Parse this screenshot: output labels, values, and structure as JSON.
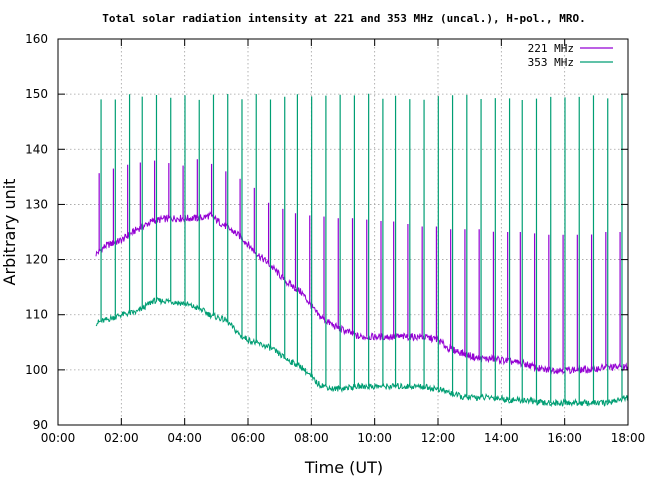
{
  "chart_data": {
    "type": "line",
    "title": "Total solar radiation intensity at 221 and 353 MHz (uncal.), H-pol., MRO.",
    "xlabel": "Time (UT)",
    "ylabel": "Arbitrary unit",
    "xlim": [
      0,
      18
    ],
    "ylim": [
      90,
      160
    ],
    "x_ticks": [
      0,
      2,
      4,
      6,
      8,
      10,
      12,
      14,
      16,
      18
    ],
    "x_tick_labels": [
      "00:00",
      "02:00",
      "04:00",
      "06:00",
      "08:00",
      "10:00",
      "12:00",
      "14:00",
      "16:00",
      "18:00"
    ],
    "y_ticks": [
      90,
      100,
      110,
      120,
      130,
      140,
      150,
      160
    ],
    "y_tick_labels": [
      "90",
      "100",
      "110",
      "120",
      "130",
      "140",
      "150",
      "160"
    ],
    "grid": true,
    "legend_position": "top-right",
    "series": [
      {
        "name": "221 MHz",
        "color": "#9400d3",
        "x": [
          1.2,
          1.5,
          2.0,
          2.5,
          3.0,
          3.5,
          4.0,
          4.5,
          4.8,
          5.3,
          5.8,
          6.2,
          6.7,
          7.2,
          7.7,
          8.2,
          8.7,
          9.5,
          10.0,
          10.5,
          11.0,
          11.5,
          12.0,
          12.3,
          12.8,
          13.3,
          13.8,
          14.3,
          14.8,
          15.3,
          15.8,
          16.3,
          16.8,
          17.3,
          18.0
        ],
        "values": [
          121,
          122.5,
          123.5,
          125.5,
          127,
          127.5,
          127.5,
          127.5,
          128,
          126,
          124,
          121.5,
          119,
          116,
          114,
          110,
          108,
          106,
          106,
          106,
          106,
          106,
          105.5,
          104,
          103,
          102,
          102,
          101.5,
          101,
          100,
          100,
          100,
          100,
          100.5,
          100.5
        ],
        "spike_peaks": [
          135.5,
          136,
          137,
          137.5,
          138,
          137.5,
          137,
          138.5,
          137.5,
          136,
          134.5,
          133,
          130,
          129,
          128,
          128,
          127.5,
          127.5,
          127,
          127,
          126.5,
          126,
          126,
          125.5,
          125.5,
          125.5,
          125,
          125,
          125,
          124.5,
          124.5,
          124.5,
          124.5,
          125,
          125
        ]
      },
      {
        "name": "353 MHz",
        "color": "#009e73",
        "x": [
          1.2,
          1.5,
          2.0,
          2.5,
          3.0,
          3.5,
          4.0,
          4.5,
          4.8,
          5.3,
          5.8,
          6.2,
          6.7,
          7.2,
          7.7,
          8.2,
          8.7,
          9.5,
          10.0,
          10.5,
          11.0,
          11.5,
          12.0,
          12.3,
          12.8,
          13.3,
          13.8,
          14.3,
          14.8,
          15.3,
          15.8,
          16.3,
          16.8,
          17.3,
          18.0
        ],
        "values": [
          108.5,
          109,
          110,
          110.5,
          112.5,
          112.5,
          112,
          111,
          110,
          109,
          106,
          105,
          104,
          102,
          100.5,
          97.5,
          96.5,
          97,
          97,
          97,
          97,
          97,
          96.5,
          96,
          95,
          95,
          95,
          94.5,
          94.5,
          94,
          94,
          94,
          94,
          94,
          95
        ],
        "spike_peak": 149.5
      }
    ],
    "spike_times": [
      1.3,
      1.75,
      2.2,
      2.6,
      3.05,
      3.5,
      3.95,
      4.4,
      4.85,
      5.3,
      5.75,
      6.2,
      6.65,
      7.1,
      7.5,
      7.95,
      8.4,
      8.85,
      9.3,
      9.75,
      10.2,
      10.6,
      11.05,
      11.5,
      11.95,
      12.4,
      12.85,
      13.3,
      13.75,
      14.2,
      14.6,
      15.05,
      15.5,
      15.95,
      16.4,
      16.85,
      17.3,
      17.75
    ]
  }
}
